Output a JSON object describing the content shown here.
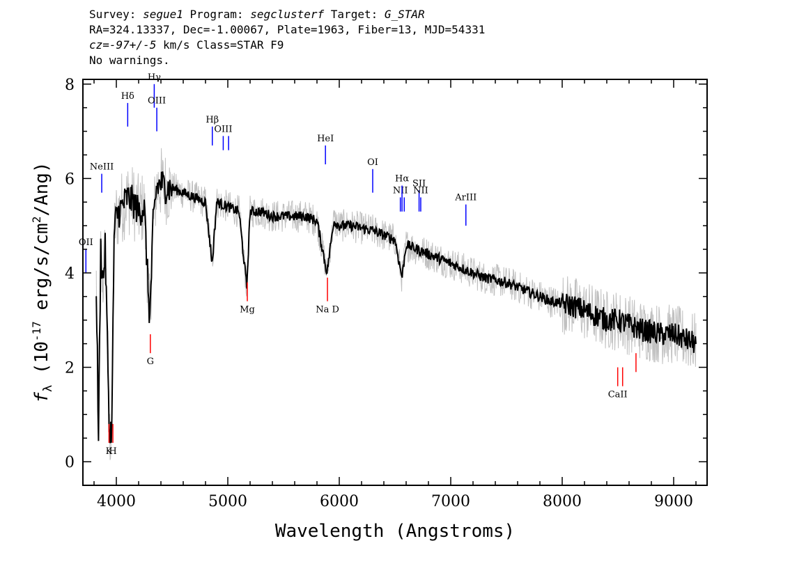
{
  "header": {
    "survey_label": "Survey: ",
    "survey": "segue1",
    "program_label": " Program: ",
    "program": "segclusterf",
    "target_label": " Target: ",
    "target": "G_STAR",
    "line2": "RA=324.13337, Dec=-1.00067, Plate=1963, Fiber=13, MJD=54331",
    "cz": "cz=-97+/-5",
    "cz_rest": " km/s Class=STAR F9",
    "line4": "No warnings."
  },
  "chart_data": {
    "type": "line",
    "title": "",
    "xlabel": "Wavelength (Angstroms)",
    "ylabel_prefix": "f",
    "ylabel_sub": "λ",
    "ylabel_mid": " (10",
    "ylabel_exp": "-17",
    "ylabel_mid2": " erg/s/cm",
    "ylabel_exp2": "2",
    "ylabel_end": "/Ang)",
    "xlim": [
      3700,
      9300
    ],
    "ylim": [
      -0.5,
      8.1
    ],
    "x_ticks": [
      4000,
      5000,
      6000,
      7000,
      8000,
      9000
    ],
    "x_tick_labels": [
      "4000",
      "5000",
      "6000",
      "7000",
      "8000",
      "9000"
    ],
    "y_ticks": [
      0,
      2,
      4,
      6,
      8
    ],
    "y_tick_labels": [
      "0",
      "2",
      "4",
      "6",
      "8"
    ],
    "spectrum_color": "#000000",
    "noise_color": "#c0c0c0",
    "emission_color": "#0000ff",
    "absorption_color": "#ff0000",
    "series": [
      {
        "name": "",
        "x": [
          3820,
          3840,
          3860,
          3880,
          3900,
          3920,
          3940,
          3960,
          3980,
          4000,
          4050,
          4100,
          4150,
          4200,
          4250,
          4300,
          4330,
          4360,
          4400,
          4450,
          4500,
          4600,
          4700,
          4800,
          4860,
          4900,
          5000,
          5100,
          5170,
          5200,
          5300,
          5400,
          5500,
          5600,
          5700,
          5800,
          5890,
          5950,
          6000,
          6100,
          6200,
          6300,
          6400,
          6500,
          6563,
          6600,
          6700,
          6800,
          6900,
          7000,
          7100,
          7200,
          7300,
          7400,
          7500,
          7600,
          7700,
          7800,
          7900,
          8000,
          8100,
          8200,
          8300,
          8400,
          8500,
          8600,
          8700,
          8800,
          8900,
          9000,
          9100,
          9200
        ],
        "y": [
          3.8,
          0.5,
          4.5,
          3.8,
          4.5,
          2.5,
          0.5,
          0.8,
          4.8,
          5.2,
          5.4,
          5.6,
          5.5,
          5.3,
          5.4,
          3.0,
          5.0,
          5.8,
          5.9,
          5.8,
          5.8,
          5.7,
          5.6,
          5.5,
          4.2,
          5.5,
          5.4,
          5.3,
          3.7,
          5.3,
          5.3,
          5.2,
          5.2,
          5.2,
          5.2,
          5.1,
          4.0,
          5.1,
          5.0,
          5.0,
          4.95,
          4.9,
          4.8,
          4.7,
          3.9,
          4.6,
          4.5,
          4.4,
          4.3,
          4.2,
          4.1,
          4.0,
          3.9,
          3.85,
          3.8,
          3.7,
          3.6,
          3.5,
          3.4,
          3.35,
          3.3,
          3.2,
          3.1,
          3.0,
          3.0,
          2.9,
          2.8,
          2.75,
          2.7,
          2.7,
          2.6,
          2.5
        ]
      }
    ],
    "lines": [
      {
        "label": "OII",
        "x": 3727,
        "y1": 4.0,
        "y2": 4.5,
        "kind": "emission"
      },
      {
        "label": "NeIII",
        "x": 3869,
        "y1": 5.7,
        "y2": 6.1,
        "kind": "emission"
      },
      {
        "label": "Hδ",
        "x": 4102,
        "y1": 7.1,
        "y2": 7.6,
        "kind": "emission"
      },
      {
        "label": "Hγ",
        "x": 4340,
        "y1": 7.5,
        "y2": 8.0,
        "kind": "emission"
      },
      {
        "label": "OIII",
        "x": 4363,
        "y1": 7.0,
        "y2": 7.5,
        "kind": "emission"
      },
      {
        "label": "Hβ",
        "x": 4861,
        "y1": 6.7,
        "y2": 7.1,
        "kind": "emission"
      },
      {
        "label": "OIII",
        "x": 4959,
        "y1": 6.6,
        "y2": 6.9,
        "kind": "emission"
      },
      {
        "label": "",
        "x": 5007,
        "y1": 6.6,
        "y2": 6.9,
        "kind": "emission"
      },
      {
        "label": "HeI",
        "x": 5876,
        "y1": 6.3,
        "y2": 6.7,
        "kind": "emission"
      },
      {
        "label": "OI",
        "x": 6300,
        "y1": 5.7,
        "y2": 6.2,
        "kind": "emission"
      },
      {
        "label": "NII",
        "x": 6548,
        "y1": 5.3,
        "y2": 5.6,
        "kind": "emission"
      },
      {
        "label": "Hα",
        "x": 6563,
        "y1": 5.3,
        "y2": 5.85,
        "kind": "emission"
      },
      {
        "label": "",
        "x": 6583,
        "y1": 5.3,
        "y2": 5.6,
        "kind": "emission"
      },
      {
        "label": "SII",
        "x": 6716,
        "y1": 5.3,
        "y2": 5.75,
        "kind": "emission"
      },
      {
        "label": "NII",
        "x": 6731,
        "y1": 5.3,
        "y2": 5.6,
        "kind": "emission"
      },
      {
        "label": "ArIII",
        "x": 7136,
        "y1": 5.0,
        "y2": 5.45,
        "kind": "emission"
      },
      {
        "label": "K",
        "x": 3934,
        "y1": 0.4,
        "y2": 0.8,
        "kind": "absorption"
      },
      {
        "label": "H",
        "x": 3969,
        "y1": 0.4,
        "y2": 0.8,
        "kind": "absorption"
      },
      {
        "label": "G",
        "x": 4305,
        "y1": 2.3,
        "y2": 2.7,
        "kind": "absorption"
      },
      {
        "label": "Mg",
        "x": 5175,
        "y1": 3.4,
        "y2": 3.8,
        "kind": "absorption"
      },
      {
        "label": "Na D",
        "x": 5894,
        "y1": 3.4,
        "y2": 3.9,
        "kind": "absorption"
      },
      {
        "label": "CaII",
        "x": 8498,
        "y1": 1.6,
        "y2": 2.0,
        "kind": "absorption"
      },
      {
        "label": "",
        "x": 8542,
        "y1": 1.6,
        "y2": 2.0,
        "kind": "absorption"
      },
      {
        "label": "",
        "x": 8662,
        "y1": 1.9,
        "y2": 2.3,
        "kind": "absorption"
      }
    ]
  }
}
